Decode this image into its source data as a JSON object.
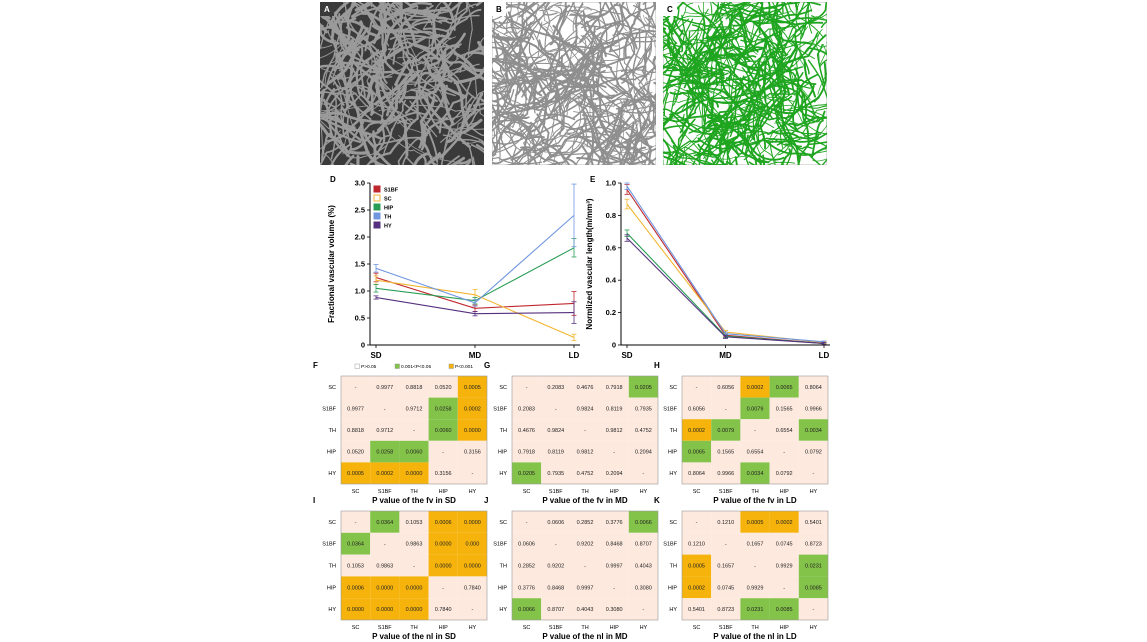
{
  "colors": {
    "S1BF": "#c0272d",
    "SC": "#f2b632",
    "HIP": "#2a9d55",
    "TH": "#7096e0",
    "HY": "#55307f",
    "cell_high": "#fde9de",
    "cell_mid": "#84c34a",
    "cell_low": "#f5b30c",
    "img_a_bg": "#3a3a3a",
    "img_a_vessel": "#9a9a9a",
    "img_b_bg": "#ffffff",
    "img_b_vessel": "#8f8f8f",
    "img_c_bg": "#ffffff",
    "img_c_vessel": "#1fa51f"
  },
  "panels": {
    "A": {
      "letter": "A"
    },
    "B": {
      "letter": "B"
    },
    "C": {
      "letter": "C"
    }
  },
  "chart_data": [
    {
      "id": "D",
      "letter": "D",
      "type": "line",
      "categories": [
        "SD",
        "MD",
        "LD"
      ],
      "ylabel": "Fractional vascular volume (%)",
      "ylim": [
        0,
        3.0
      ],
      "yticks": [
        "0",
        "0.5",
        "1.0",
        "1.5",
        "2.0",
        "2.5",
        "3.0"
      ],
      "legend_position": "top-left",
      "series": [
        {
          "name": "S1BF",
          "values": [
            1.25,
            0.68,
            0.77
          ],
          "errors": [
            0.08,
            0.06,
            0.22
          ]
        },
        {
          "name": "SC",
          "values": [
            1.2,
            0.93,
            0.14
          ],
          "errors": [
            0.08,
            0.1,
            0.06
          ]
        },
        {
          "name": "HIP",
          "values": [
            1.05,
            0.82,
            1.8
          ],
          "errors": [
            0.07,
            0.06,
            0.17
          ]
        },
        {
          "name": "TH",
          "values": [
            1.42,
            0.78,
            2.4
          ],
          "errors": [
            0.07,
            0.06,
            0.58
          ]
        },
        {
          "name": "HY",
          "values": [
            0.88,
            0.58,
            0.6
          ],
          "errors": [
            0.03,
            0.04,
            0.2
          ]
        }
      ]
    },
    {
      "id": "E",
      "letter": "E",
      "type": "line",
      "categories": [
        "SD",
        "MD",
        "LD"
      ],
      "ylabel": "Normlized vascular length(m/mm³)",
      "ylim": [
        0,
        1.0
      ],
      "yticks": [
        "0",
        "0.2",
        "0.4",
        "0.6",
        "0.8",
        "1.0"
      ],
      "series": [
        {
          "name": "S1BF",
          "values": [
            0.96,
            0.06,
            0.01
          ],
          "errors": [
            0.03,
            0.01,
            0.005
          ]
        },
        {
          "name": "SC",
          "values": [
            0.87,
            0.08,
            0.015
          ],
          "errors": [
            0.03,
            0.01,
            0.005
          ]
        },
        {
          "name": "HIP",
          "values": [
            0.69,
            0.055,
            0.01
          ],
          "errors": [
            0.02,
            0.01,
            0.005
          ]
        },
        {
          "name": "TH",
          "values": [
            0.98,
            0.07,
            0.02
          ],
          "errors": [
            0.02,
            0.01,
            0.005
          ]
        },
        {
          "name": "HY",
          "values": [
            0.66,
            0.05,
            0.01
          ],
          "errors": [
            0.02,
            0.01,
            0.005
          ]
        }
      ]
    },
    {
      "id": "F",
      "letter": "F",
      "type": "table",
      "title": "P value of the fv in SD",
      "row_labels": [
        "SC",
        "S1BF",
        "TH",
        "HIP",
        "HY"
      ],
      "col_labels": [
        "SC",
        "S1BF",
        "TH",
        "HIP",
        "HY"
      ],
      "legend": [
        "P>0.05",
        "0.001<P<0.05",
        "P<0.001"
      ],
      "cells": [
        [
          "-",
          "0.9977",
          "0.8818",
          "0.0520",
          "0.0005"
        ],
        [
          "0.9977",
          "-",
          "0.9712",
          "0.0258",
          "0.0002"
        ],
        [
          "0.8818",
          "0.9712",
          "-",
          "0.0060",
          "0.0000"
        ],
        [
          "0.0520",
          "0.0258",
          "0.0060",
          "-",
          "0.3156"
        ],
        [
          "0.0005",
          "0.0002",
          "0.0000",
          "0.3156",
          "-"
        ]
      ],
      "levels": [
        [
          "h",
          "h",
          "h",
          "h",
          "l"
        ],
        [
          "h",
          "h",
          "h",
          "m",
          "l"
        ],
        [
          "h",
          "h",
          "h",
          "m",
          "l"
        ],
        [
          "h",
          "m",
          "m",
          "h",
          "h"
        ],
        [
          "l",
          "l",
          "l",
          "h",
          "h"
        ]
      ]
    },
    {
      "id": "G",
      "letter": "G",
      "type": "table",
      "title": "P value of the fv in MD",
      "row_labels": [
        "SC",
        "S1BF",
        "TH",
        "HIP",
        "HY"
      ],
      "col_labels": [
        "SC",
        "S1BF",
        "TH",
        "HIP",
        "HY"
      ],
      "cells": [
        [
          "-",
          "0.2083",
          "0.4676",
          "0.7918",
          "0.0205"
        ],
        [
          "0.2083",
          "-",
          "0.9824",
          "0.8119",
          "0.7935"
        ],
        [
          "0.4676",
          "0.9824",
          "-",
          "0.9812",
          "0.4752"
        ],
        [
          "0.7918",
          "0.8119",
          "0.9812",
          "-",
          "0.2094"
        ],
        [
          "0.0205",
          "0.7935",
          "0.4752",
          "0.2094",
          "-"
        ]
      ],
      "levels": [
        [
          "h",
          "h",
          "h",
          "h",
          "m"
        ],
        [
          "h",
          "h",
          "h",
          "h",
          "h"
        ],
        [
          "h",
          "h",
          "h",
          "h",
          "h"
        ],
        [
          "h",
          "h",
          "h",
          "h",
          "h"
        ],
        [
          "m",
          "h",
          "h",
          "h",
          "h"
        ]
      ]
    },
    {
      "id": "H",
      "letter": "H",
      "type": "table",
      "title": "P value of the fv in LD",
      "row_labels": [
        "SC",
        "S1BF",
        "TH",
        "HIP",
        "HY"
      ],
      "col_labels": [
        "SC",
        "S1BF",
        "TH",
        "HIP",
        "HY"
      ],
      "cells": [
        [
          "-",
          "0.6056",
          "0.0002",
          "0.0065",
          "0.8064"
        ],
        [
          "0.6056",
          "-",
          "0.0079",
          "0.1565",
          "0.9966"
        ],
        [
          "0.0002",
          "0.0079",
          "-",
          "0.6554",
          "0.0034"
        ],
        [
          "0.0065",
          "0.1565",
          "0.6554",
          "-",
          "0.0792"
        ],
        [
          "0.8064",
          "0.9966",
          "0.0034",
          "0.0792",
          "-"
        ]
      ],
      "levels": [
        [
          "h",
          "h",
          "l",
          "m",
          "h"
        ],
        [
          "h",
          "h",
          "m",
          "h",
          "h"
        ],
        [
          "l",
          "m",
          "h",
          "h",
          "m"
        ],
        [
          "m",
          "h",
          "h",
          "h",
          "h"
        ],
        [
          "h",
          "h",
          "m",
          "h",
          "h"
        ]
      ]
    },
    {
      "id": "I",
      "letter": "I",
      "type": "table",
      "title": "P value of the nl in SD",
      "row_labels": [
        "SC",
        "S1BF",
        "TH",
        "HIP",
        "HY"
      ],
      "col_labels": [
        "SC",
        "S1BF",
        "TH",
        "HIP",
        "HY"
      ],
      "cells": [
        [
          "-",
          "0.0364",
          "0.1053",
          "0.0006",
          "0.0000"
        ],
        [
          "0.0364",
          "-",
          "0.9863",
          "0.0000",
          "0.000"
        ],
        [
          "0.1053",
          "0.9863",
          "-",
          "0.0000",
          "0.0000"
        ],
        [
          "0.0006",
          "0.0000",
          "0.0000",
          "-",
          "0.7840"
        ],
        [
          "0.0000",
          "0.0000",
          "0.0000",
          "0.7840",
          "-"
        ]
      ],
      "levels": [
        [
          "h",
          "m",
          "h",
          "l",
          "l"
        ],
        [
          "m",
          "h",
          "h",
          "l",
          "l"
        ],
        [
          "h",
          "h",
          "h",
          "l",
          "l"
        ],
        [
          "l",
          "l",
          "l",
          "h",
          "h"
        ],
        [
          "l",
          "l",
          "l",
          "h",
          "h"
        ]
      ]
    },
    {
      "id": "J",
      "letter": "J",
      "type": "table",
      "title": "P value of the nl in MD",
      "row_labels": [
        "SC",
        "S1BF",
        "TH",
        "HIP",
        "HY"
      ],
      "col_labels": [
        "SC",
        "S1BF",
        "TH",
        "HIP",
        "HY"
      ],
      "cells": [
        [
          "-",
          "0.0606",
          "0.2852",
          "0.3776",
          "0.0066"
        ],
        [
          "0.0606",
          "-",
          "0.9202",
          "0.8468",
          "0.8707"
        ],
        [
          "0.2852",
          "0.9202",
          "-",
          "0.9997",
          "0.4043"
        ],
        [
          "0.3776",
          "0.8468",
          "0.9997",
          "-",
          "0.3080"
        ],
        [
          "0.0066",
          "0.8707",
          "0.4043",
          "0.3080",
          "-"
        ]
      ],
      "levels": [
        [
          "h",
          "h",
          "h",
          "h",
          "m"
        ],
        [
          "h",
          "h",
          "h",
          "h",
          "h"
        ],
        [
          "h",
          "h",
          "h",
          "h",
          "h"
        ],
        [
          "h",
          "h",
          "h",
          "h",
          "h"
        ],
        [
          "m",
          "h",
          "h",
          "h",
          "h"
        ]
      ]
    },
    {
      "id": "K",
      "letter": "K",
      "type": "table",
      "title": "P value of the nl in LD",
      "row_labels": [
        "SC",
        "S1BF",
        "TH",
        "HIP",
        "HY"
      ],
      "col_labels": [
        "SC",
        "S1BF",
        "TH",
        "HIP",
        "HY"
      ],
      "cells": [
        [
          "-",
          "0.1210",
          "0.0005",
          "0.0002",
          "0.5401"
        ],
        [
          "0.1210",
          "-",
          "0.1657",
          "0.0745",
          "0.8723"
        ],
        [
          "0.0005",
          "0.1657",
          "-",
          "0.9929",
          "0.0231"
        ],
        [
          "0.0002",
          "0.0745",
          "0.9929",
          "-",
          "0.0085"
        ],
        [
          "0.5401",
          "0.8723",
          "0.0231",
          "0.0085",
          "-"
        ]
      ],
      "levels": [
        [
          "h",
          "h",
          "l",
          "l",
          "h"
        ],
        [
          "h",
          "h",
          "h",
          "h",
          "h"
        ],
        [
          "l",
          "h",
          "h",
          "h",
          "m"
        ],
        [
          "l",
          "h",
          "h",
          "h",
          "m"
        ],
        [
          "h",
          "h",
          "m",
          "m",
          "h"
        ]
      ]
    }
  ]
}
